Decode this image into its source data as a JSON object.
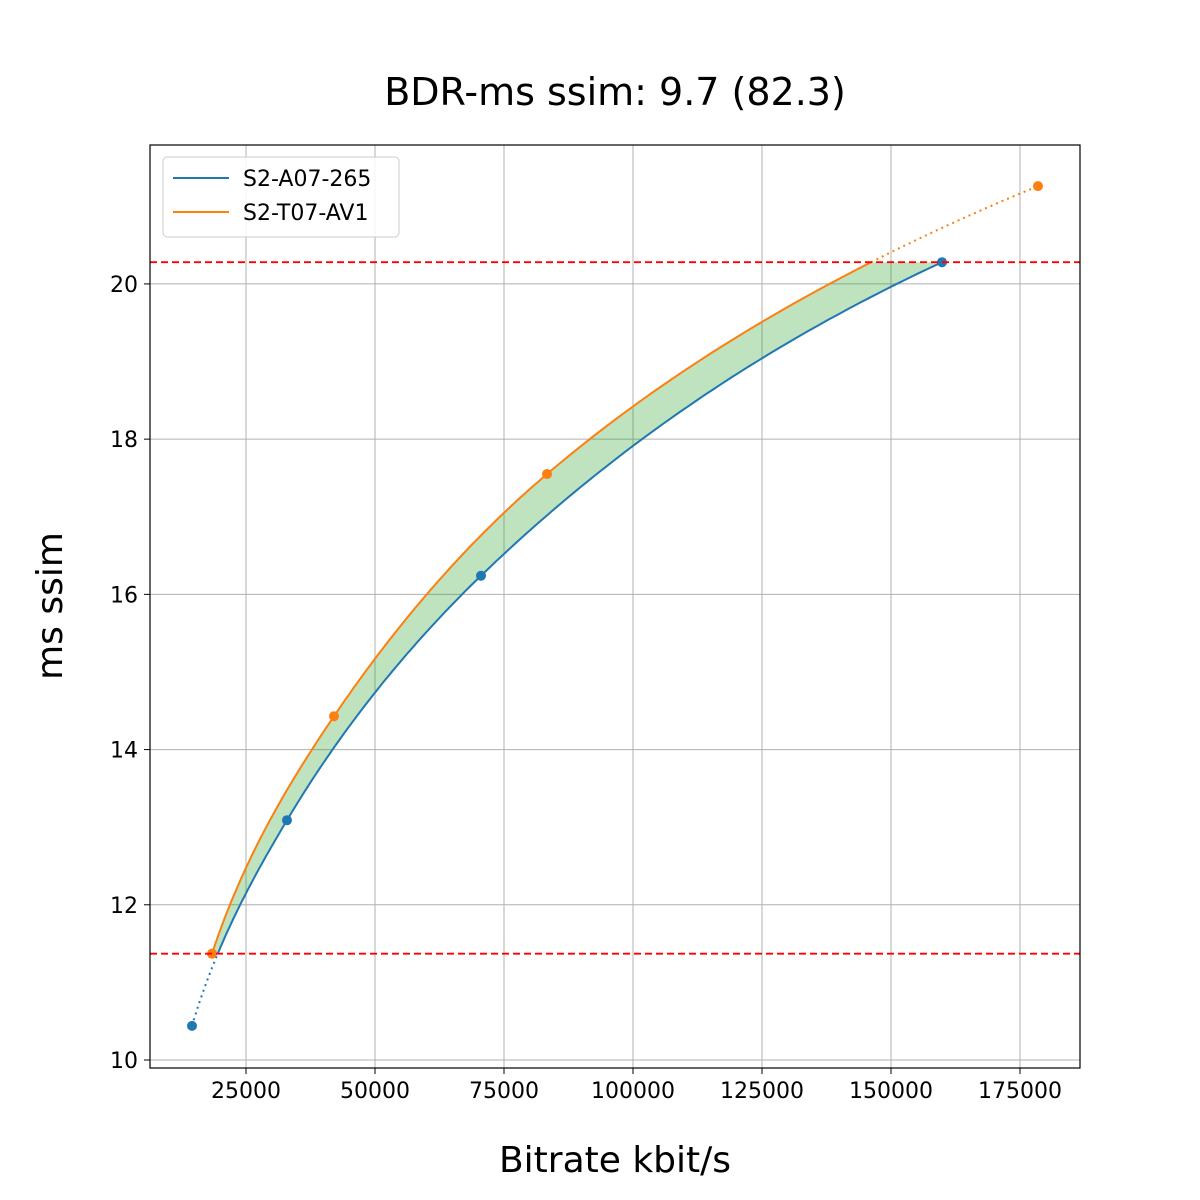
{
  "chart_data": {
    "type": "line",
    "title": "BDR-ms ssim: 9.7 (82.3)",
    "xlabel": "Bitrate kbit/s",
    "ylabel": "ms ssim",
    "xlim": [
      6395,
      186628
    ],
    "ylim": [
      9.897,
      21.79
    ],
    "xticks": [
      25000,
      50000,
      75000,
      100000,
      125000,
      150000,
      175000
    ],
    "yticks": [
      10,
      12,
      14,
      16,
      18,
      20
    ],
    "grid": true,
    "legend_position": "top-left",
    "series": [
      {
        "name": "S2-A07-265",
        "color": "#1f77b4",
        "x": [
          14535,
          32946,
          70543,
          159885
        ],
        "y": [
          10.44,
          13.09,
          16.24,
          20.28
        ]
      },
      {
        "name": "S2-T07-AV1",
        "color": "#ff7f0e",
        "x": [
          18411,
          42054,
          83334,
          178488
        ],
        "y": [
          11.37,
          14.43,
          17.55,
          21.26
        ]
      }
    ],
    "reference_lines": {
      "color": "#ff0000",
      "style": "dashed",
      "y": [
        20.28,
        11.37
      ]
    },
    "fill_between_color": "#2ca02c"
  }
}
